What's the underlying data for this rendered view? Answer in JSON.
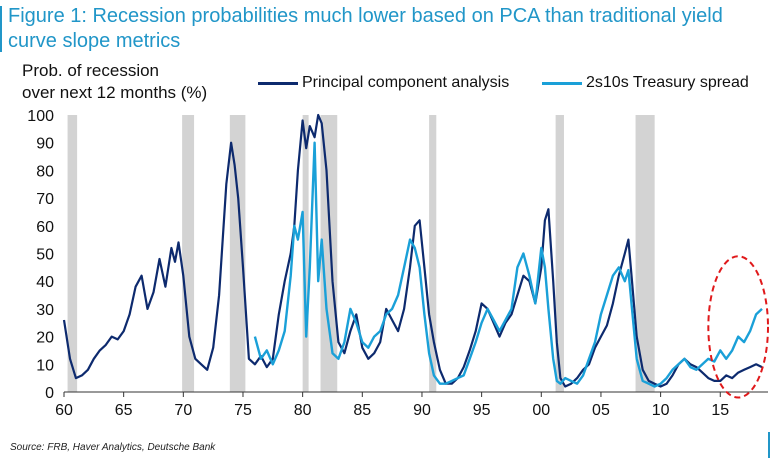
{
  "title": "Figure 1: Recession probabilities much lower based on PCA than traditional yield curve slope metrics",
  "source": "Source: FRB, Haver Analytics, Deutsche Bank",
  "colors": {
    "title": "#2196c8",
    "pca": "#0d2a6e",
    "spread": "#1aa0d8",
    "recession": "#d3d3d3",
    "highlight": "#e0191b"
  },
  "chart_data": {
    "type": "line",
    "ylabel": "Prob. of recession over next 12 months (%)",
    "ylabel_lines": [
      "Prob. of recession",
      "over next 12 months (%)"
    ],
    "xlabel": "",
    "xlim": [
      1960,
      2019
    ],
    "ylim": [
      0,
      100
    ],
    "yticks": [
      0,
      10,
      20,
      30,
      40,
      50,
      60,
      70,
      80,
      90,
      100
    ],
    "xticks": [
      {
        "year": 1960,
        "label": "60"
      },
      {
        "year": 1965,
        "label": "65"
      },
      {
        "year": 1970,
        "label": "70"
      },
      {
        "year": 1975,
        "label": "75"
      },
      {
        "year": 1980,
        "label": "80"
      },
      {
        "year": 1985,
        "label": "85"
      },
      {
        "year": 1990,
        "label": "90"
      },
      {
        "year": 1995,
        "label": "95"
      },
      {
        "year": 2000,
        "label": "00"
      },
      {
        "year": 2005,
        "label": "05"
      },
      {
        "year": 2010,
        "label": "10"
      },
      {
        "year": 2015,
        "label": "15"
      }
    ],
    "recessions": [
      [
        1960.3,
        1961.1
      ],
      [
        1969.9,
        1970.9
      ],
      [
        1973.9,
        1975.2
      ],
      [
        1980.0,
        1980.5
      ],
      [
        1981.5,
        1982.9
      ],
      [
        1990.6,
        1991.2
      ],
      [
        2001.2,
        2001.9
      ],
      [
        2007.9,
        2009.5
      ]
    ],
    "highlight_region": {
      "x": [
        2014.0,
        2019.0
      ],
      "y": [
        -2,
        49
      ]
    },
    "series": [
      {
        "name": "Principal component analysis",
        "x": [
          1960.0,
          1960.5,
          1961.0,
          1961.5,
          1962.0,
          1962.5,
          1963.0,
          1963.5,
          1964.0,
          1964.5,
          1965.0,
          1965.5,
          1966.0,
          1966.5,
          1967.0,
          1967.5,
          1968.0,
          1968.5,
          1969.0,
          1969.3,
          1969.6,
          1970.0,
          1970.5,
          1971.0,
          1971.5,
          1972.0,
          1972.5,
          1973.0,
          1973.3,
          1973.6,
          1974.0,
          1974.3,
          1974.6,
          1975.0,
          1975.5,
          1976.0,
          1976.5,
          1977.0,
          1977.5,
          1978.0,
          1978.5,
          1979.0,
          1979.3,
          1979.6,
          1980.0,
          1980.3,
          1980.6,
          1981.0,
          1981.3,
          1981.6,
          1982.0,
          1982.5,
          1983.0,
          1983.5,
          1984.0,
          1984.5,
          1985.0,
          1985.5,
          1986.0,
          1986.5,
          1987.0,
          1987.5,
          1988.0,
          1988.5,
          1989.0,
          1989.4,
          1989.8,
          1990.2,
          1990.6,
          1991.0,
          1991.5,
          1992.0,
          1992.5,
          1993.0,
          1993.5,
          1994.0,
          1994.5,
          1995.0,
          1995.5,
          1996.0,
          1996.5,
          1997.0,
          1997.5,
          1998.0,
          1998.5,
          1999.0,
          1999.5,
          2000.0,
          2000.3,
          2000.6,
          2001.0,
          2001.3,
          2001.6,
          2002.0,
          2002.5,
          2003.0,
          2003.5,
          2004.0,
          2004.5,
          2005.0,
          2005.5,
          2006.0,
          2006.5,
          2007.0,
          2007.3,
          2007.6,
          2008.0,
          2008.5,
          2009.0,
          2009.5,
          2010.0,
          2010.5,
          2011.0,
          2011.5,
          2012.0,
          2012.5,
          2013.0,
          2013.5,
          2014.0,
          2014.5,
          2015.0,
          2015.5,
          2016.0,
          2016.5,
          2017.0,
          2017.5,
          2018.0,
          2018.5
        ],
        "values": [
          26,
          12,
          5,
          6,
          8,
          12,
          15,
          17,
          20,
          19,
          22,
          28,
          38,
          42,
          30,
          36,
          48,
          38,
          52,
          47,
          54,
          42,
          20,
          12,
          10,
          8,
          16,
          35,
          55,
          75,
          90,
          82,
          70,
          45,
          12,
          10,
          13,
          9,
          12,
          28,
          40,
          50,
          60,
          80,
          98,
          88,
          96,
          92,
          100,
          97,
          80,
          40,
          18,
          14,
          22,
          28,
          16,
          12,
          14,
          18,
          30,
          26,
          22,
          30,
          45,
          60,
          62,
          45,
          28,
          18,
          8,
          3,
          3,
          5,
          9,
          15,
          22,
          32,
          30,
          25,
          20,
          25,
          28,
          35,
          42,
          40,
          32,
          45,
          62,
          66,
          40,
          18,
          5,
          2,
          3,
          5,
          8,
          10,
          16,
          20,
          24,
          32,
          42,
          50,
          55,
          40,
          20,
          8,
          4,
          3,
          2,
          3,
          6,
          10,
          12,
          10,
          9,
          7,
          5,
          4,
          4,
          6,
          5,
          7,
          8,
          9,
          10,
          9
        ]
      },
      {
        "name": "2s10s Treasury spread",
        "x": [
          1976.0,
          1976.5,
          1977.0,
          1977.5,
          1978.0,
          1978.5,
          1979.0,
          1979.3,
          1979.6,
          1980.0,
          1980.3,
          1980.6,
          1981.0,
          1981.3,
          1981.6,
          1982.0,
          1982.5,
          1983.0,
          1983.5,
          1984.0,
          1984.5,
          1985.0,
          1985.5,
          1986.0,
          1986.5,
          1987.0,
          1987.5,
          1988.0,
          1988.5,
          1989.0,
          1989.4,
          1989.8,
          1990.2,
          1990.6,
          1991.0,
          1991.5,
          1992.0,
          1992.5,
          1993.0,
          1993.5,
          1994.0,
          1994.5,
          1995.0,
          1995.5,
          1996.0,
          1996.5,
          1997.0,
          1997.5,
          1998.0,
          1998.5,
          1999.0,
          1999.5,
          2000.0,
          2000.3,
          2000.6,
          2001.0,
          2001.3,
          2001.6,
          2002.0,
          2002.5,
          2003.0,
          2003.5,
          2004.0,
          2004.5,
          2005.0,
          2005.5,
          2006.0,
          2006.5,
          2007.0,
          2007.3,
          2007.6,
          2008.0,
          2008.5,
          2009.0,
          2009.5,
          2010.0,
          2010.5,
          2011.0,
          2011.5,
          2012.0,
          2012.5,
          2013.0,
          2013.5,
          2014.0,
          2014.5,
          2015.0,
          2015.5,
          2016.0,
          2016.5,
          2017.0,
          2017.5,
          2018.0,
          2018.5
        ],
        "values": [
          20,
          12,
          15,
          10,
          15,
          22,
          42,
          60,
          55,
          65,
          20,
          45,
          90,
          40,
          55,
          30,
          14,
          12,
          18,
          30,
          25,
          18,
          16,
          20,
          22,
          28,
          30,
          35,
          45,
          55,
          52,
          45,
          28,
          14,
          6,
          3,
          3,
          4,
          5,
          6,
          12,
          18,
          25,
          30,
          26,
          22,
          26,
          30,
          45,
          50,
          42,
          32,
          52,
          45,
          30,
          12,
          4,
          3,
          5,
          4,
          3,
          6,
          12,
          18,
          28,
          35,
          42,
          45,
          40,
          44,
          30,
          12,
          4,
          3,
          2,
          3,
          5,
          8,
          10,
          12,
          9,
          8,
          10,
          12,
          11,
          15,
          12,
          15,
          20,
          18,
          22,
          28,
          30
        ]
      }
    ]
  }
}
